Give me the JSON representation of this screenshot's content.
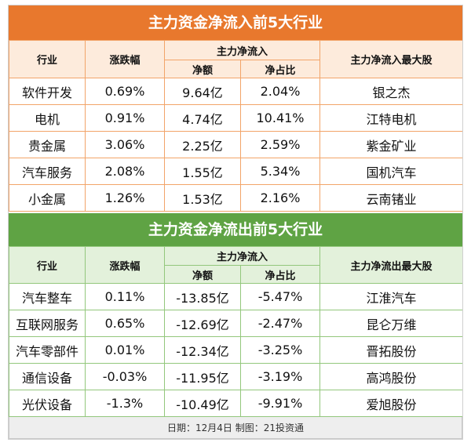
{
  "inflow": {
    "title": "主力资金净流入前5大行业",
    "headers": {
      "industry": "行业",
      "change": "涨跌幅",
      "net_flow": "主力净流入",
      "net_amount": "净额",
      "net_ratio": "净占比",
      "top_stock": "主力净流入最大股"
    },
    "rows": [
      {
        "industry": "软件开发",
        "change": "0.69%",
        "net_amount": "9.64亿",
        "net_ratio": "2.04%",
        "top_stock": "银之杰"
      },
      {
        "industry": "电机",
        "change": "0.91%",
        "net_amount": "4.74亿",
        "net_ratio": "10.41%",
        "top_stock": "江特电机"
      },
      {
        "industry": "贵金属",
        "change": "3.06%",
        "net_amount": "2.25亿",
        "net_ratio": "2.59%",
        "top_stock": "紫金矿业"
      },
      {
        "industry": "汽车服务",
        "change": "2.08%",
        "net_amount": "1.55亿",
        "net_ratio": "5.34%",
        "top_stock": "国机汽车"
      },
      {
        "industry": "小金属",
        "change": "1.26%",
        "net_amount": "1.53亿",
        "net_ratio": "2.16%",
        "top_stock": "云南锗业"
      }
    ]
  },
  "outflow": {
    "title": "主力资金净流出前5大行业",
    "headers": {
      "industry": "行业",
      "change": "涨跌幅",
      "net_flow": "主力净流入",
      "net_amount": "净额",
      "net_ratio": "净占比",
      "top_stock": "主力净流出最大股"
    },
    "rows": [
      {
        "industry": "汽车整车",
        "change": "0.11%",
        "net_amount": "-13.85亿",
        "net_ratio": "-5.47%",
        "top_stock": "江淮汽车"
      },
      {
        "industry": "互联网服务",
        "change": "0.65%",
        "net_amount": "-12.69亿",
        "net_ratio": "-2.47%",
        "top_stock": "昆仑万维"
      },
      {
        "industry": "汽车零部件",
        "change": "0.01%",
        "net_amount": "-12.34亿",
        "net_ratio": "-3.25%",
        "top_stock": "晋拓股份"
      },
      {
        "industry": "通信设备",
        "change": "-0.03%",
        "net_amount": "-11.95亿",
        "net_ratio": "-3.19%",
        "top_stock": "高鸿股份"
      },
      {
        "industry": "光伏设备",
        "change": "-1.3%",
        "net_amount": "-10.49亿",
        "net_ratio": "-9.91%",
        "top_stock": "爱旭股份"
      }
    ]
  },
  "footer": "日期：12月4日 制图：21投资通",
  "colors": {
    "inflow_accent": "#e8782d",
    "inflow_header_bg": "#fdebdc",
    "outflow_accent": "#5fa344",
    "outflow_header_bg": "#e3f1db"
  }
}
